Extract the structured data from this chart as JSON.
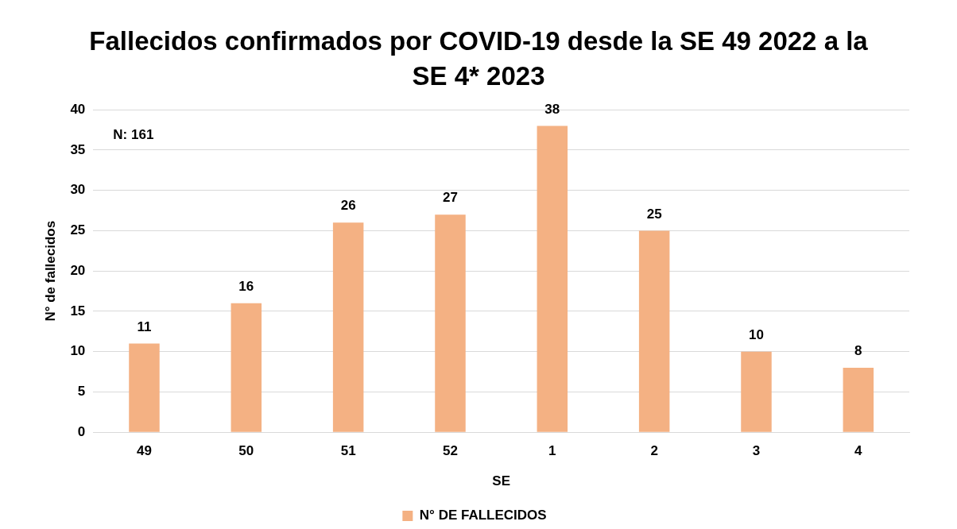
{
  "chart_data": {
    "type": "bar",
    "title": "Fallecidos confirmados por COVID-19 desde la SE 49 2022 a la SE 4* 2023",
    "xlabel": "SE",
    "ylabel": "N° de fallecidos",
    "categories": [
      "49",
      "50",
      "51",
      "52",
      "1",
      "2",
      "3",
      "4"
    ],
    "series": [
      {
        "name": "N° DE FALLECIDOS",
        "color": "#f4b183",
        "values": [
          11,
          16,
          26,
          27,
          38,
          25,
          10,
          8
        ]
      }
    ],
    "ylim": [
      0,
      40
    ],
    "yticks": [
      0,
      5,
      10,
      15,
      20,
      25,
      30,
      35,
      40
    ],
    "grid": "y",
    "legend": "bottom",
    "data_labels": true,
    "annotations": [
      "N: 161"
    ]
  }
}
